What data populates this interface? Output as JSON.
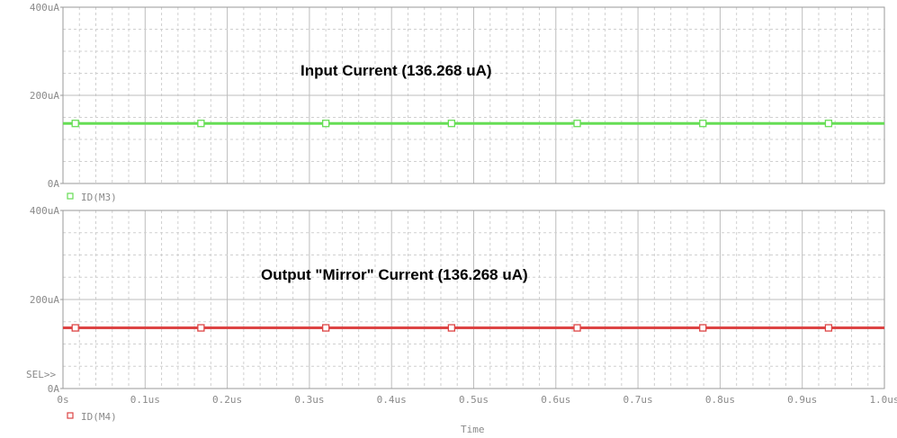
{
  "chart_data": [
    {
      "type": "line",
      "ylim": [
        0,
        400
      ],
      "xlim": [
        0,
        1.0
      ],
      "y_ticks": [
        "0A",
        "200uA",
        "400uA"
      ],
      "x_ticks": [],
      "grid": true,
      "series": [
        {
          "name": "ID(M3)",
          "color": "#66dd55",
          "marker": "open-square",
          "x": [
            0.0,
            1.0
          ],
          "values": [
            136.268,
            136.268
          ],
          "marker_x": [
            0.015,
            0.168,
            0.32,
            0.473,
            0.626,
            0.779,
            0.932
          ]
        }
      ],
      "annotation": "Input Current (136.268 uA)"
    },
    {
      "type": "line",
      "ylim": [
        0,
        400
      ],
      "xlim": [
        0,
        1.0
      ],
      "y_ticks": [
        "0A",
        "200uA",
        "400uA"
      ],
      "x_ticks": [
        "0s",
        "0.1us",
        "0.2us",
        "0.3us",
        "0.4us",
        "0.5us",
        "0.6us",
        "0.7us",
        "0.8us",
        "0.9us",
        "1.0us"
      ],
      "xlabel": "Time",
      "grid": true,
      "sel_marker": "SEL>>",
      "series": [
        {
          "name": "ID(M4)",
          "color": "#dd4444",
          "marker": "open-square",
          "x": [
            0.0,
            1.0
          ],
          "values": [
            136.268,
            136.268
          ],
          "marker_x": [
            0.015,
            0.168,
            0.32,
            0.473,
            0.626,
            0.779,
            0.932
          ]
        }
      ],
      "annotation": "Output \"Mirror\" Current (136.268 uA)"
    }
  ]
}
